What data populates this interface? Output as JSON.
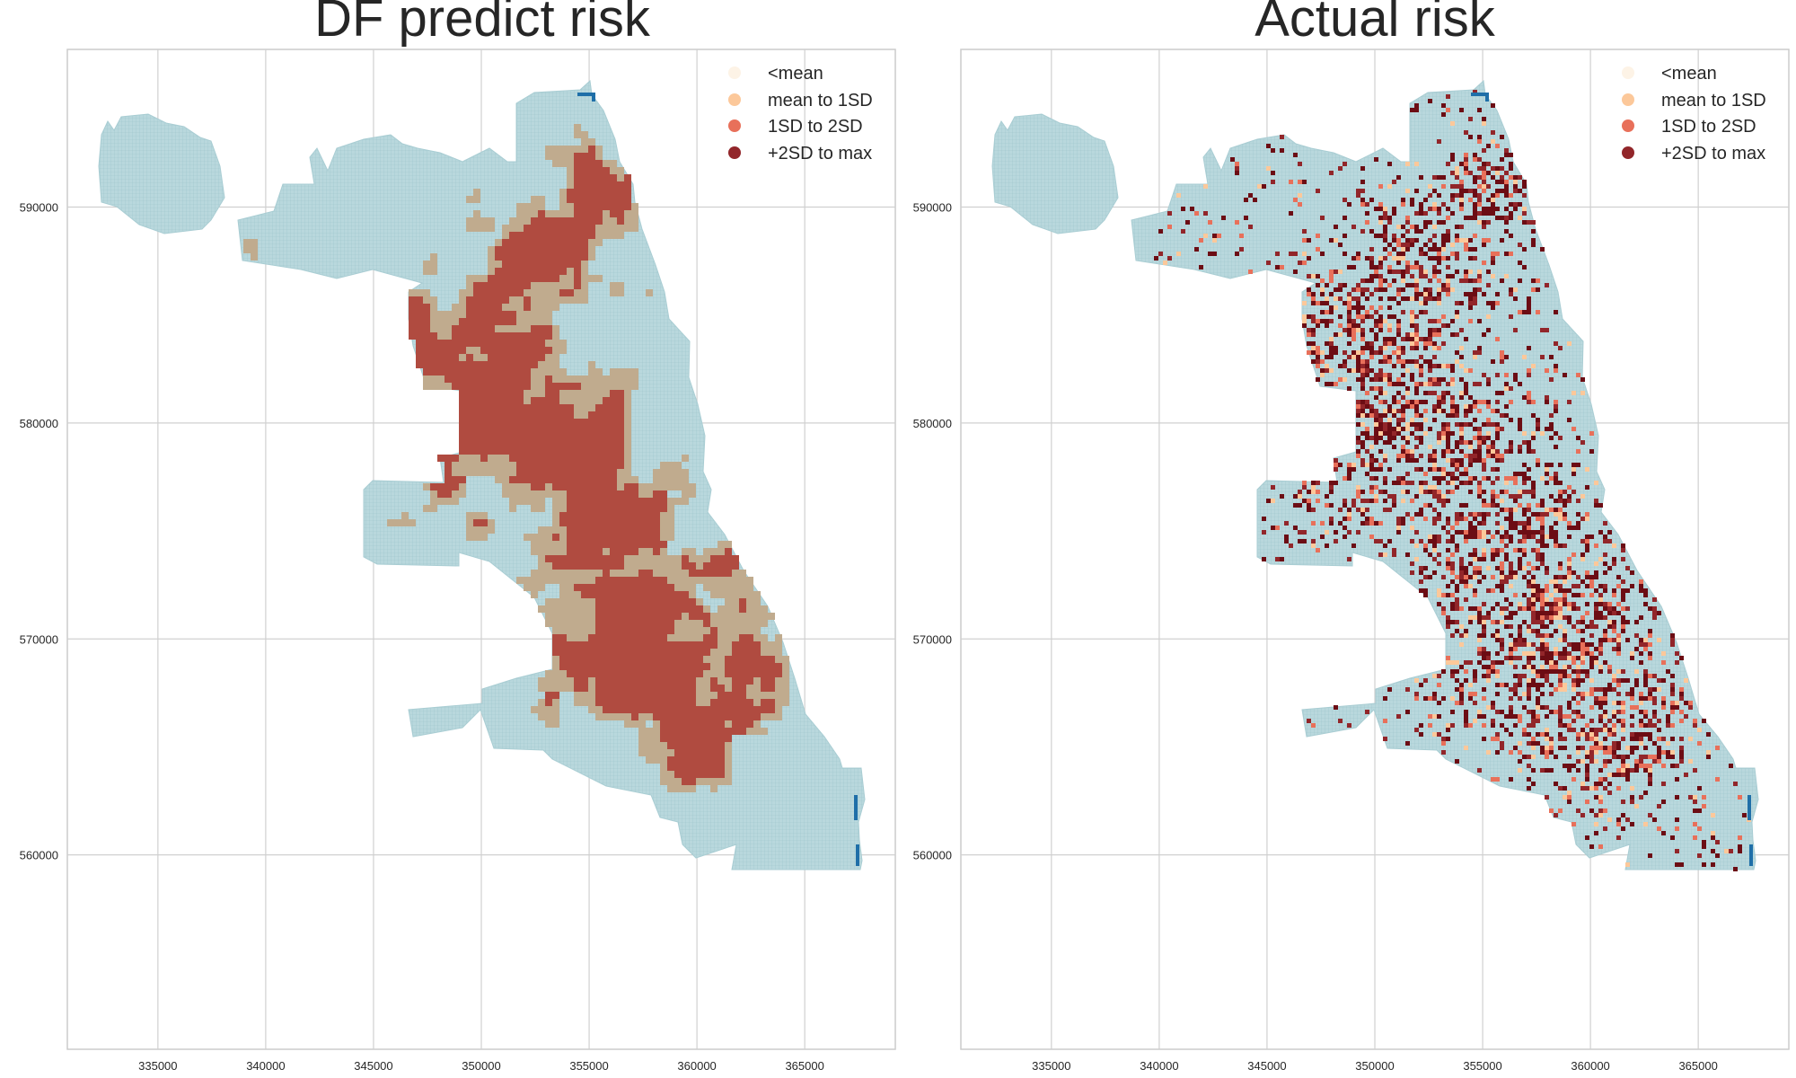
{
  "figure": {
    "colors": {
      "base_fill": "#b9d8dd",
      "below_mean": "#fdf3e6",
      "mean_to_1sd": "#fcc89a",
      "sd1_to_2sd": "#e8705a",
      "sd2_to_max": "#92262a",
      "pred_mid": "#c0ab8e",
      "pred_high": "#b04b40",
      "actual_high": "#6c0d14",
      "grid": "#d0d0d0",
      "frame": "#cccccc",
      "water": "#1f6fa8"
    },
    "panels": [
      {
        "title": "DF predict risk",
        "legend": [
          "<mean",
          "mean to 1SD",
          "1SD to 2SD",
          "+2SD to max"
        ],
        "variant": "predicted"
      },
      {
        "title": "Actual risk",
        "legend": [
          "<mean",
          "mean to 1SD",
          "1SD to 2SD",
          "+2SD to max"
        ],
        "variant": "actual"
      }
    ],
    "axes": {
      "xlim": [
        330800,
        369200
      ],
      "ylim": [
        551000,
        597300
      ],
      "xticks": [
        "335000",
        "340000",
        "345000",
        "350000",
        "355000",
        "360000",
        "365000"
      ],
      "yticks": [
        "560000",
        "570000",
        "580000",
        "590000"
      ]
    }
  }
}
